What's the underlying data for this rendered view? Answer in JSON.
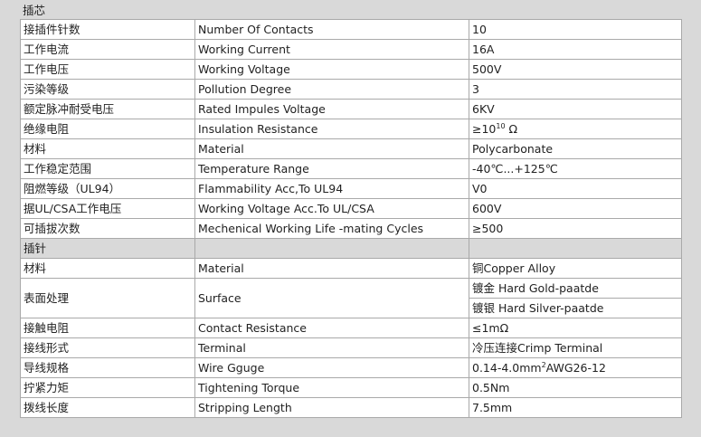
{
  "section1": {
    "title": "插芯",
    "rows": [
      [
        "接插件针数",
        "Number Of Contacts",
        "10"
      ],
      [
        "工作电流",
        "Working Current",
        "16A"
      ],
      [
        "工作电压",
        "Working Voltage",
        "500V"
      ],
      [
        "污染等级",
        "Pollution Degree",
        "3"
      ],
      [
        "额定脉冲耐受电压",
        "Rated Impules Voltage",
        "6KV"
      ],
      [
        "绝缘电阻",
        "Insulation Resistance",
        "≥10",
        "10",
        " Ω"
      ],
      [
        "材料",
        "Material",
        "Polycarbonate"
      ],
      [
        "工作稳定范围",
        "Temperature Range",
        "-40℃...+125℃"
      ],
      [
        "阻燃等级（UL94）",
        "Flammability Acc,To UL94",
        "V0"
      ],
      [
        "据UL/CSA工作电压",
        "Working Voltage Acc.To UL/CSA",
        "600V"
      ],
      [
        "可插拔次数",
        "Mechenical Working Life -mating Cycles",
        "≥500"
      ]
    ]
  },
  "section2": {
    "title": "插针",
    "rows": [
      [
        "材料",
        "Material",
        "铜Copper Alloy"
      ],
      [
        "表面处理",
        "Surface",
        "镀金 Hard Gold-paatde",
        "镀银 Hard Silver-paatde"
      ],
      [
        "接触电阻",
        "Contact Resistance",
        "≤1mΩ"
      ],
      [
        "接线形式",
        "Terminal",
        "冷压连接Crimp Terminal"
      ],
      [
        "导线规格",
        "Wire Gguge",
        "0.14-4.0mm",
        "2",
        "AWG26-12"
      ],
      [
        "拧紧力矩",
        "Tightening Torque",
        "0.5Nm"
      ],
      [
        "拨线长度",
        "Stripping Length",
        "7.5mm"
      ]
    ]
  }
}
